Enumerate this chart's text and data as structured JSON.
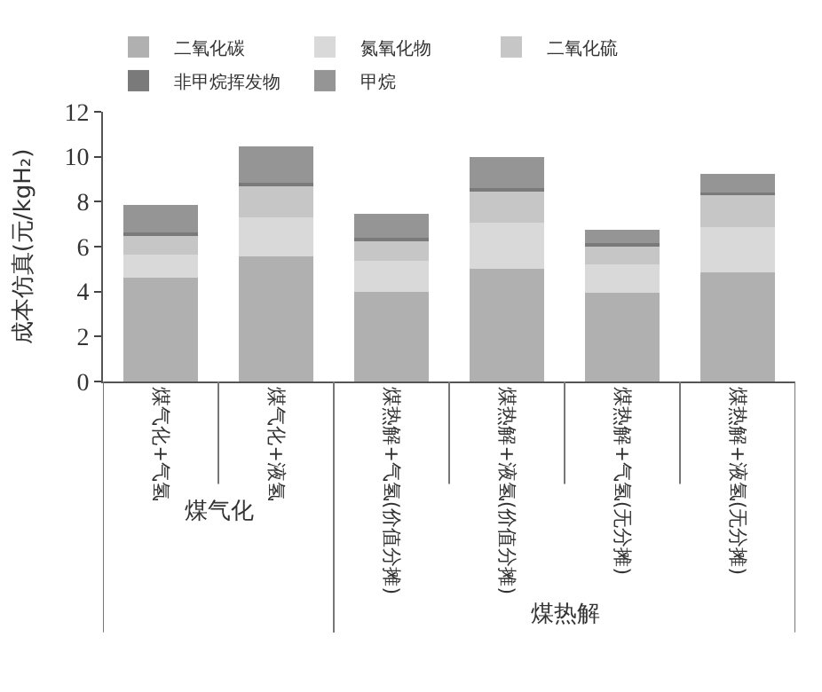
{
  "chart_data": {
    "type": "bar",
    "stacked": true,
    "ylabel": "成本仿真(元/kgH₂)",
    "categories": [
      "煤气化+气氢",
      "煤气化+液氢",
      "煤热解+气氢(价值分摊)",
      "煤热解+液氢(价值分摊)",
      "煤热解+气氢(无分摊)",
      "煤热解+液氢(无分摊)"
    ],
    "series": [
      {
        "name": "二氧化碳",
        "color": "#b0b0b0",
        "values": [
          4.6,
          5.55,
          4.0,
          5.0,
          3.95,
          4.85
        ]
      },
      {
        "name": "氮氧化物",
        "color": "#d9d9d9",
        "values": [
          1.05,
          1.75,
          1.35,
          2.05,
          1.25,
          2.0
        ]
      },
      {
        "name": "二氧化硫",
        "color": "#c6c6c6",
        "values": [
          0.9,
          1.45,
          0.95,
          1.45,
          0.85,
          1.45
        ]
      },
      {
        "name": "非甲烷挥发物",
        "color": "#7a7a7a",
        "values": [
          0.1,
          0.1,
          0.1,
          0.1,
          0.1,
          0.1
        ]
      },
      {
        "name": "甲烷",
        "color": "#959595",
        "values": [
          1.2,
          1.6,
          1.05,
          1.4,
          0.6,
          0.85
        ]
      }
    ],
    "annotations": [
      "煤气化",
      "煤热解"
    ],
    "ylim": [
      0,
      12
    ],
    "yticks": [
      0,
      2,
      4,
      6,
      8,
      10,
      12
    ],
    "legend": "top"
  }
}
